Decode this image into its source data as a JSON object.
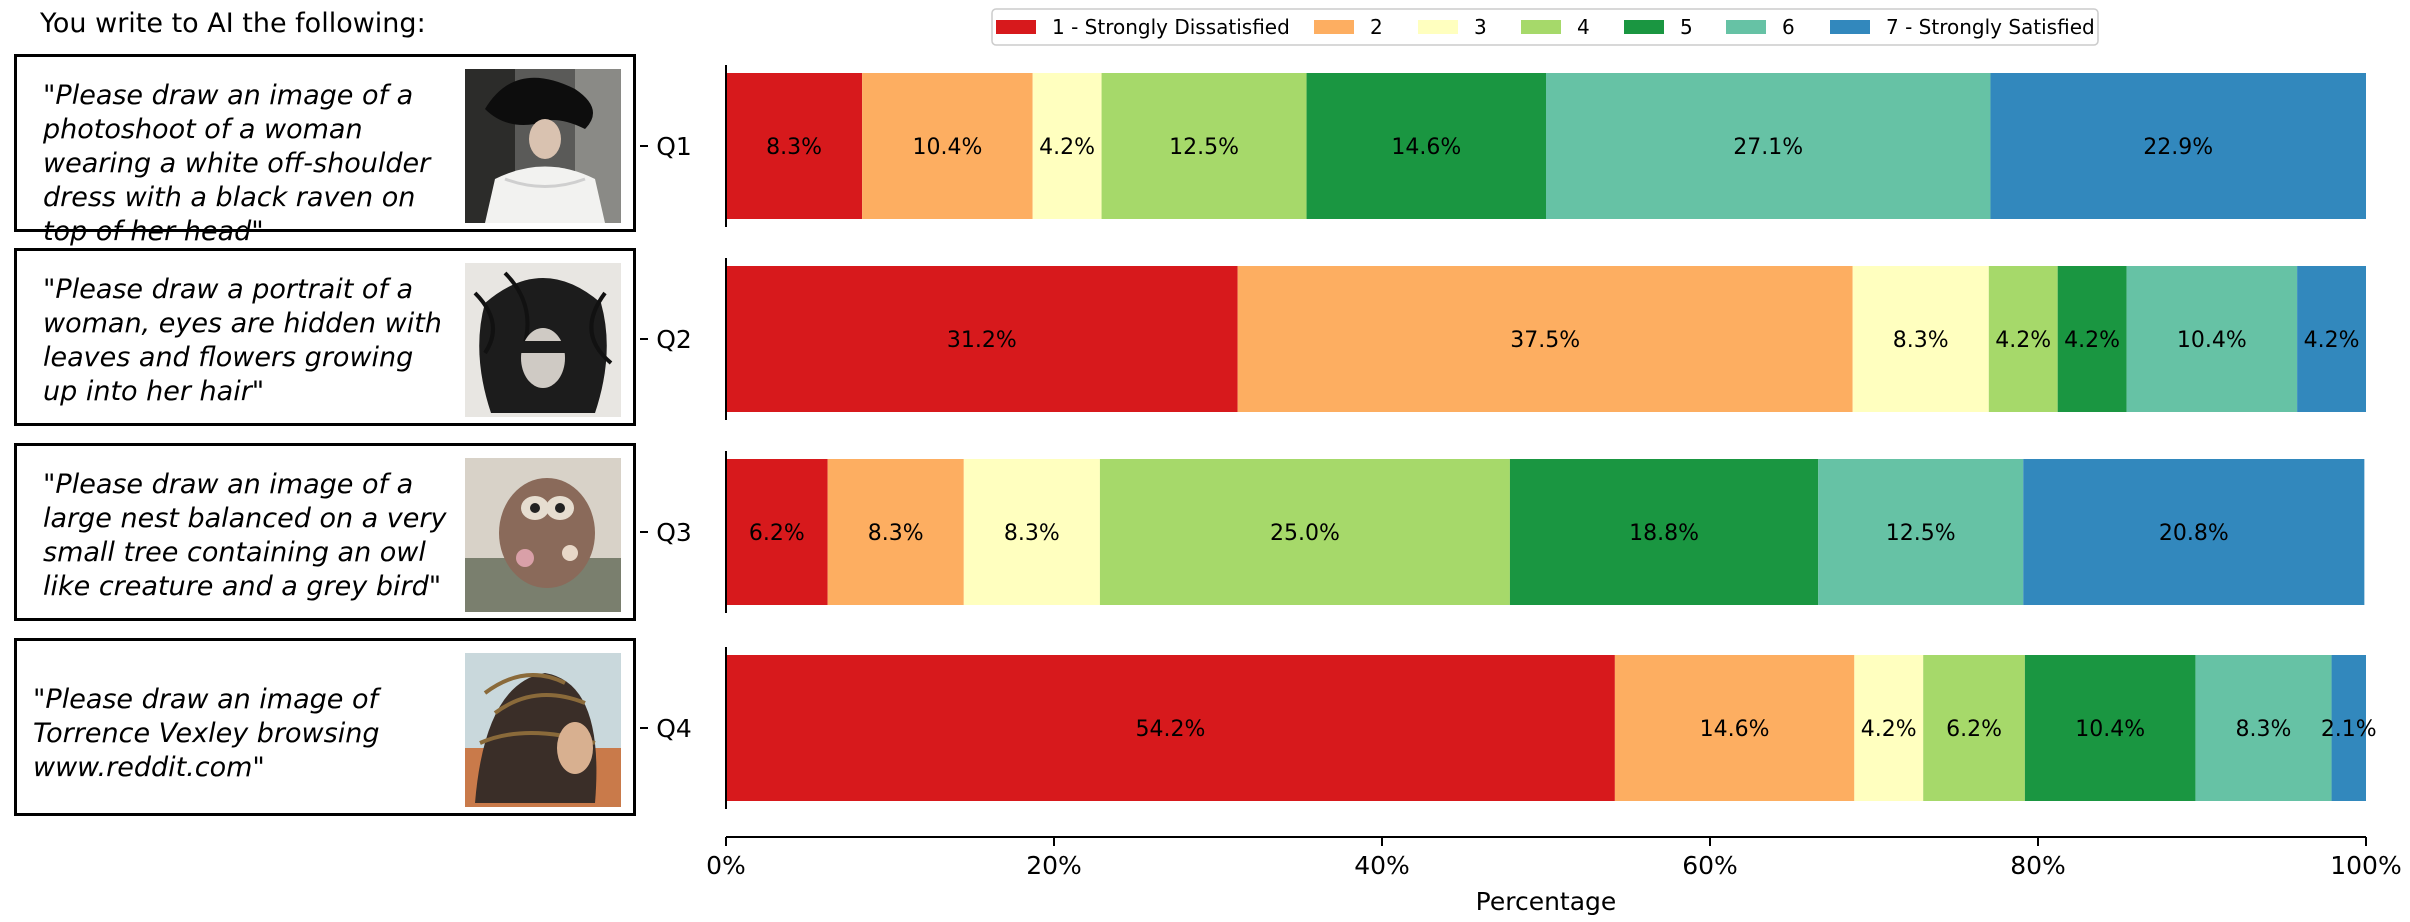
{
  "header": "You write to AI the following:",
  "prompts": [
    {
      "text": "\"Please draw an image of a photoshoot of a woman wearing a white off-shoulder dress with a black raven on top of her head\"",
      "image": "woman-raven-image"
    },
    {
      "text": "\"Please draw a portrait of a woman, eyes are hidden with leaves and flowers growing up into her hair\"",
      "image": "woman-hair-image"
    },
    {
      "text": "\"Please draw an image of a large nest balanced on a very small tree containing an owl like creature and a grey bird\"",
      "image": "nest-owl-image"
    },
    {
      "text": "\"Please draw an image of Torrence Vexley browsing www.reddit.com\"",
      "image": "torrence-vexley-image"
    }
  ],
  "chart_data": {
    "type": "bar",
    "orientation": "horizontal",
    "stacked": true,
    "categories": [
      "Q1",
      "Q2",
      "Q3",
      "Q4"
    ],
    "xlabel": "Percentage",
    "xlim": [
      0,
      100
    ],
    "xticks": [
      "0%",
      "20%",
      "40%",
      "60%",
      "80%",
      "100%"
    ],
    "legend_position": "top",
    "series": [
      {
        "name": "1 - Strongly Dissatisfied",
        "color": "#d7191c",
        "values": [
          8.3,
          31.2,
          6.2,
          54.2
        ],
        "labels": [
          "8.3%",
          "31.2%",
          "6.2%",
          "54.2%"
        ]
      },
      {
        "name": "2",
        "color": "#fdae61",
        "values": [
          10.4,
          37.5,
          8.3,
          14.6
        ],
        "labels": [
          "10.4%",
          "37.5%",
          "8.3%",
          "14.6%"
        ]
      },
      {
        "name": "3",
        "color": "#ffffbf",
        "values": [
          4.2,
          8.3,
          8.3,
          4.2
        ],
        "labels": [
          "4.2%",
          "8.3%",
          "8.3%",
          "4.2%"
        ]
      },
      {
        "name": "4",
        "color": "#a6d96a",
        "values": [
          12.5,
          4.2,
          25.0,
          6.2
        ],
        "labels": [
          "12.5%",
          "4.2%",
          "25.0%",
          "6.2%"
        ]
      },
      {
        "name": "5",
        "color": "#1a9641",
        "values": [
          14.6,
          4.2,
          18.8,
          10.4
        ],
        "labels": [
          "14.6%",
          "4.2%",
          "18.8%",
          "10.4%"
        ]
      },
      {
        "name": "6",
        "color": "#66c2a5",
        "values": [
          27.1,
          10.4,
          12.5,
          8.3
        ],
        "labels": [
          "27.1%",
          "10.4%",
          "12.5%",
          "8.3%"
        ]
      },
      {
        "name": "7 - Strongly Satisfied",
        "color": "#3288bd",
        "values": [
          22.9,
          4.2,
          20.8,
          2.1
        ],
        "labels": [
          "22.9%",
          "4.2%",
          "20.8%",
          "2.1%"
        ]
      }
    ]
  }
}
